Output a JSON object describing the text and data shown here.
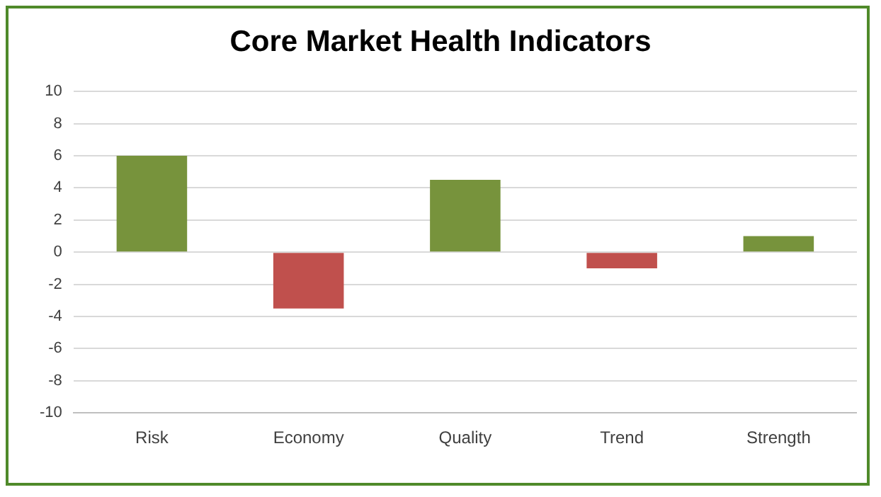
{
  "chart_data": {
    "type": "bar",
    "title": "Core Market Health Indicators",
    "categories": [
      "Risk",
      "Economy",
      "Quality",
      "Trend",
      "Strength"
    ],
    "values": [
      6,
      -3.5,
      4.5,
      -1,
      1
    ],
    "colors": [
      "#77933c",
      "#c0504d",
      "#77933c",
      "#c0504d",
      "#77933c"
    ],
    "ylim": [
      -10,
      10
    ],
    "yticks": [
      -10,
      -8,
      -6,
      -4,
      -2,
      0,
      2,
      4,
      6,
      8,
      10
    ],
    "grid": "y"
  }
}
